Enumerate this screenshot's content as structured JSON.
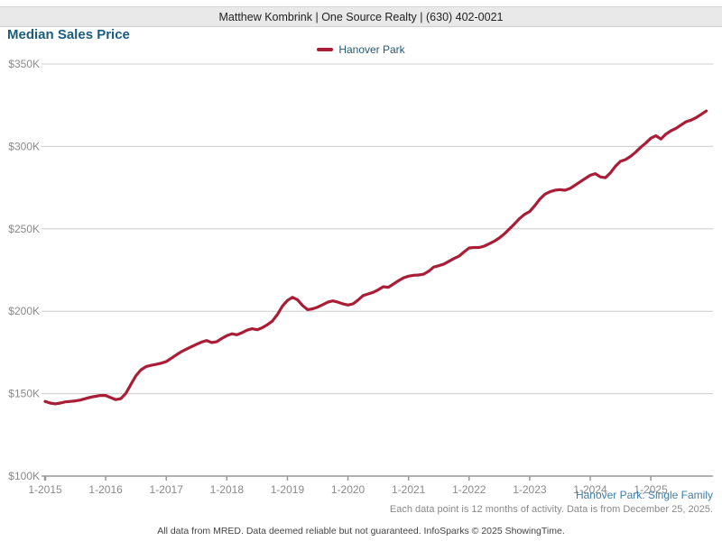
{
  "header": {
    "agent_info": "Matthew Kombrink | One Source Realty | (630) 402-0021"
  },
  "title": "Median Sales Price",
  "legend": {
    "label": "Hanover Park"
  },
  "colors": {
    "line": "#a91e36",
    "title_blue": "#1b5c7d",
    "link_blue": "#3e7ca8",
    "axis_text": "#8a8a8a",
    "gridline": "#cccccc",
    "axis_line": "#999999"
  },
  "footer": {
    "series_note": "Hanover Park: Single Family",
    "data_note": "Each data point is 12 months of activity. Data is from December 25, 2025.",
    "disclaimer": "All data from MRED. Data deemed reliable but not guaranteed. InfoSparks © 2025 ShowingTime."
  },
  "chart_data": {
    "type": "line",
    "title": "Median Sales Price",
    "unit": "USD thousands",
    "x_start": "1-2015",
    "x_end": "12-2025",
    "x_interval": "monthly",
    "x_tick_labels": [
      "1-2015",
      "1-2016",
      "1-2017",
      "1-2018",
      "1-2019",
      "1-2020",
      "1-2021",
      "1-2022",
      "1-2023",
      "1-2024",
      "1-2025"
    ],
    "y_ticks": [
      100,
      150,
      200,
      250,
      300,
      350
    ],
    "y_tick_labels": [
      "$100K",
      "$150K",
      "$200K",
      "$250K",
      "$300K",
      "$350K"
    ],
    "ylim": [
      100,
      350
    ],
    "grid": "horizontal",
    "legend_position": "top-center",
    "series": [
      {
        "name": "Hanover Park",
        "values": [
          145.3,
          144.3,
          143.8,
          144.3,
          145.0,
          145.3,
          145.6,
          146.1,
          147.0,
          147.8,
          148.4,
          148.9,
          148.9,
          147.6,
          146.4,
          147.0,
          150.2,
          155.7,
          161.0,
          164.5,
          166.4,
          167.2,
          167.8,
          168.5,
          169.5,
          171.5,
          173.5,
          175.5,
          177.0,
          178.5,
          180.0,
          181.3,
          182.2,
          181.0,
          181.5,
          183.5,
          185.2,
          186.3,
          185.7,
          187.0,
          188.5,
          189.4,
          188.8,
          190.0,
          191.8,
          194.0,
          198.0,
          203.0,
          206.5,
          208.5,
          207.0,
          203.5,
          201.0,
          201.5,
          202.5,
          204.0,
          205.5,
          206.3,
          205.5,
          204.5,
          203.8,
          204.5,
          206.8,
          209.5,
          210.5,
          211.5,
          213.0,
          214.9,
          214.5,
          216.5,
          218.5,
          220.3,
          221.3,
          221.8,
          222.0,
          222.5,
          224.3,
          226.8,
          227.6,
          228.6,
          230.3,
          232.0,
          233.4,
          236.0,
          238.4,
          238.7,
          238.7,
          239.5,
          241.0,
          242.5,
          244.5,
          247.0,
          250.0,
          253.0,
          256.3,
          258.8,
          260.5,
          264.0,
          268.0,
          271.0,
          272.5,
          273.4,
          273.8,
          273.4,
          274.5,
          276.5,
          278.5,
          280.5,
          282.5,
          283.5,
          281.5,
          281.0,
          284.0,
          288.0,
          291.0,
          292.0,
          294.0,
          296.5,
          299.5,
          302.0,
          305.0,
          306.5,
          304.5,
          307.5,
          309.5,
          311.0,
          313.0,
          315.0,
          316.0,
          317.5,
          319.5,
          321.5
        ]
      }
    ]
  }
}
